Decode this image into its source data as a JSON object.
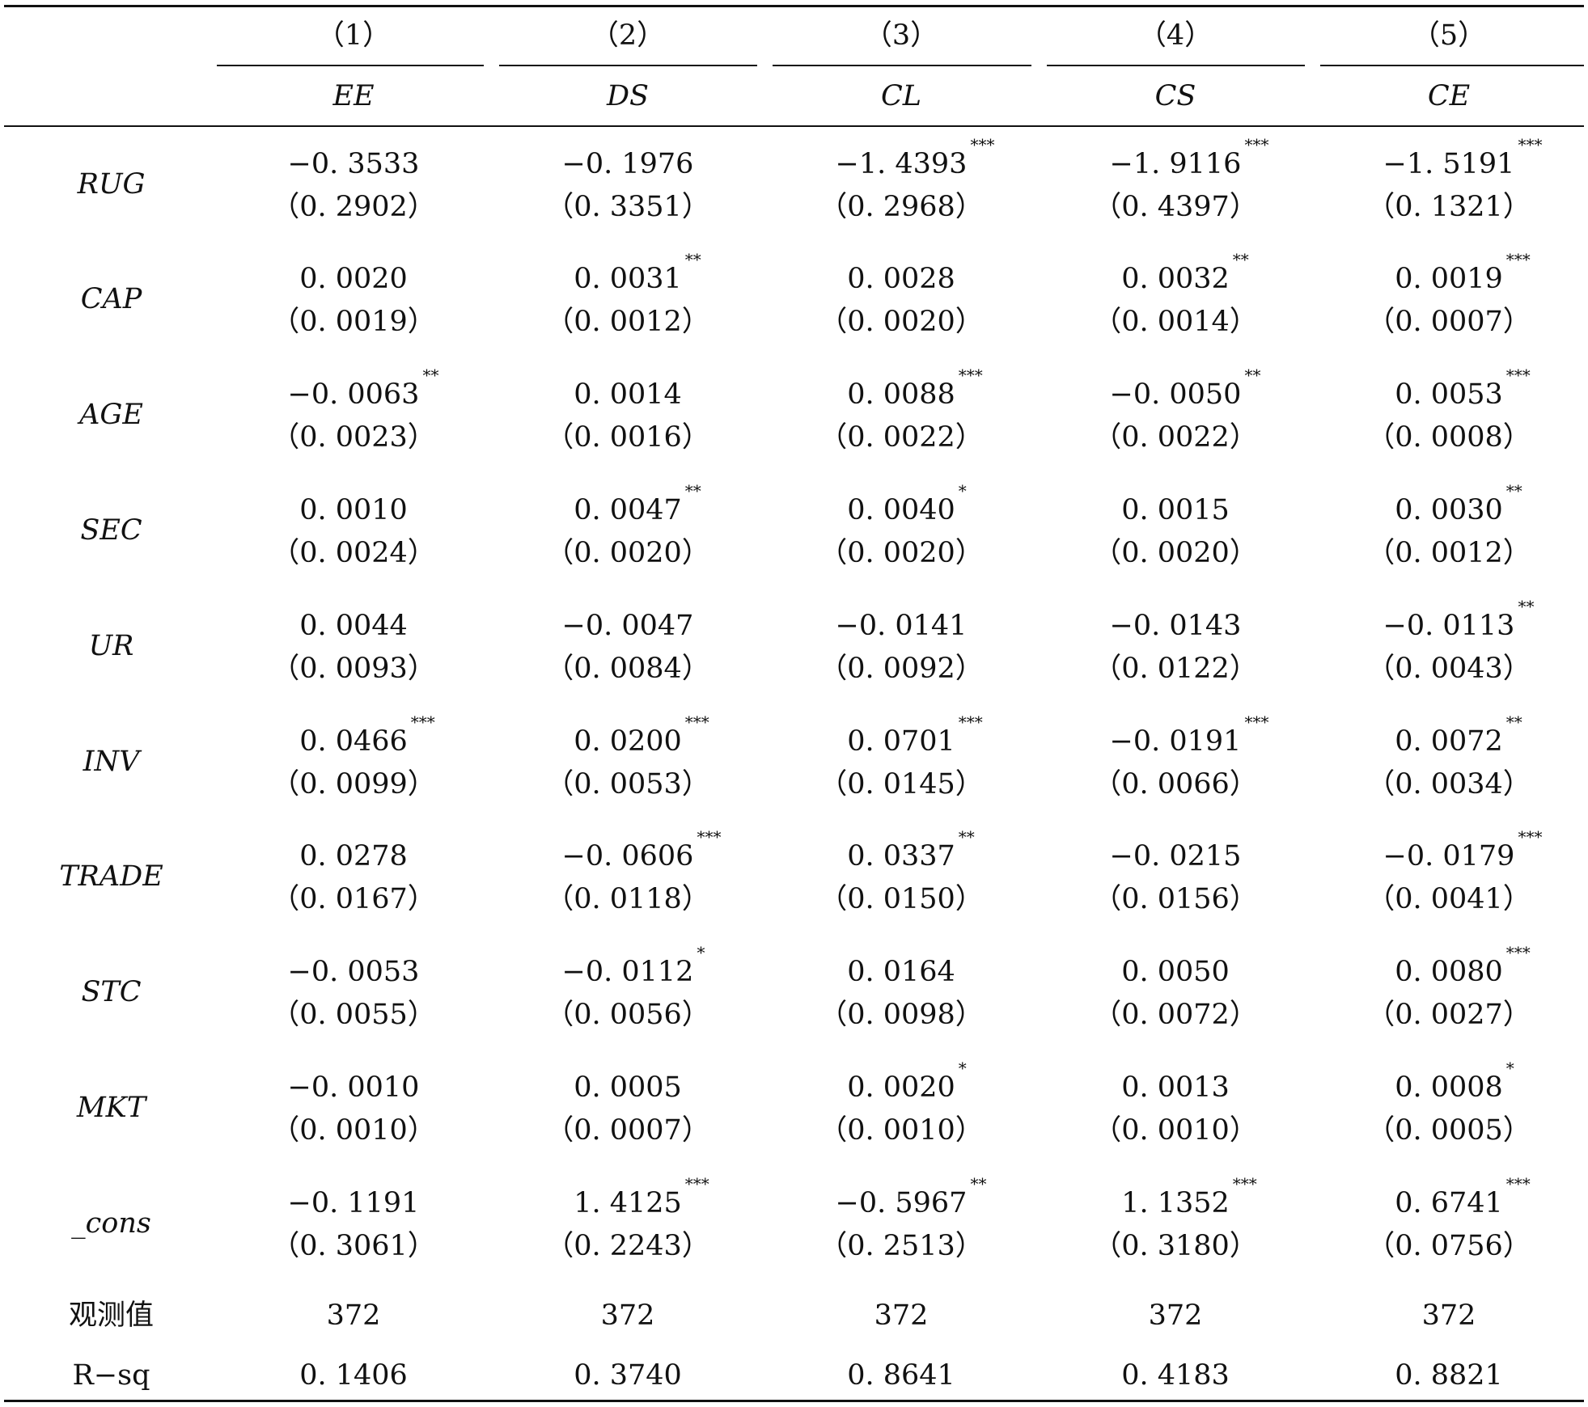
{
  "columns": [
    {
      "num": "（1）",
      "name": "EE"
    },
    {
      "num": "（2）",
      "name": "DS"
    },
    {
      "num": "（3）",
      "name": "CL"
    },
    {
      "num": "（4）",
      "name": "CS"
    },
    {
      "num": "（5）",
      "name": "CE"
    }
  ],
  "rows": [
    {
      "label": "RUG",
      "coefs": [
        {
          "v": "−0. 3533",
          "s": ""
        },
        {
          "v": "−0. 1976",
          "s": ""
        },
        {
          "v": "−1. 4393",
          "s": "***"
        },
        {
          "v": "−1. 9116",
          "s": "***"
        },
        {
          "v": "−1. 5191",
          "s": "***"
        }
      ],
      "ses": [
        "（0. 2902）",
        "（0. 3351）",
        "（0. 2968）",
        "（0. 4397）",
        "（0. 1321）"
      ]
    },
    {
      "label": "CAP",
      "coefs": [
        {
          "v": "0. 0020",
          "s": ""
        },
        {
          "v": "0. 0031",
          "s": "**"
        },
        {
          "v": "0. 0028",
          "s": ""
        },
        {
          "v": "0. 0032",
          "s": "**"
        },
        {
          "v": "0. 0019",
          "s": "***"
        }
      ],
      "ses": [
        "（0. 0019）",
        "（0. 0012）",
        "（0. 0020）",
        "（0. 0014）",
        "（0. 0007）"
      ]
    },
    {
      "label": "AGE",
      "coefs": [
        {
          "v": "−0. 0063",
          "s": "**"
        },
        {
          "v": "0. 0014",
          "s": ""
        },
        {
          "v": "0. 0088",
          "s": "***"
        },
        {
          "v": "−0. 0050",
          "s": "**"
        },
        {
          "v": "0. 0053",
          "s": "***"
        }
      ],
      "ses": [
        "（0. 0023）",
        "（0. 0016）",
        "（0. 0022）",
        "（0. 0022）",
        "（0. 0008）"
      ]
    },
    {
      "label": "SEC",
      "coefs": [
        {
          "v": "0. 0010",
          "s": ""
        },
        {
          "v": "0. 0047",
          "s": "**"
        },
        {
          "v": "0. 0040",
          "s": "*"
        },
        {
          "v": "0. 0015",
          "s": ""
        },
        {
          "v": "0. 0030",
          "s": "**"
        }
      ],
      "ses": [
        "（0. 0024）",
        "（0. 0020）",
        "（0. 0020）",
        "（0. 0020）",
        "（0. 0012）"
      ]
    },
    {
      "label": "UR",
      "coefs": [
        {
          "v": "0. 0044",
          "s": ""
        },
        {
          "v": "−0. 0047",
          "s": ""
        },
        {
          "v": "−0. 0141",
          "s": ""
        },
        {
          "v": "−0. 0143",
          "s": ""
        },
        {
          "v": "−0. 0113",
          "s": "**"
        }
      ],
      "ses": [
        "（0. 0093）",
        "（0. 0084）",
        "（0. 0092）",
        "（0. 0122）",
        "（0. 0043）"
      ]
    },
    {
      "label": "INV",
      "coefs": [
        {
          "v": "0. 0466",
          "s": "***"
        },
        {
          "v": "0. 0200",
          "s": "***"
        },
        {
          "v": "0. 0701",
          "s": "***"
        },
        {
          "v": "−0. 0191",
          "s": "***"
        },
        {
          "v": "0. 0072",
          "s": "**"
        }
      ],
      "ses": [
        "（0. 0099）",
        "（0. 0053）",
        "（0. 0145）",
        "（0. 0066）",
        "（0. 0034）"
      ]
    },
    {
      "label": "TRADE",
      "coefs": [
        {
          "v": "0. 0278",
          "s": ""
        },
        {
          "v": "−0. 0606",
          "s": "***"
        },
        {
          "v": "0. 0337",
          "s": "**"
        },
        {
          "v": "−0. 0215",
          "s": ""
        },
        {
          "v": "−0. 0179",
          "s": "***"
        }
      ],
      "ses": [
        "（0. 0167）",
        "（0. 0118）",
        "（0. 0150）",
        "（0. 0156）",
        "（0. 0041）"
      ]
    },
    {
      "label": "STC",
      "coefs": [
        {
          "v": "−0. 0053",
          "s": ""
        },
        {
          "v": "−0. 0112",
          "s": "*"
        },
        {
          "v": "0. 0164",
          "s": ""
        },
        {
          "v": "0. 0050",
          "s": ""
        },
        {
          "v": "0. 0080",
          "s": "***"
        }
      ],
      "ses": [
        "（0. 0055）",
        "（0. 0056）",
        "（0. 0098）",
        "（0. 0072）",
        "（0. 0027）"
      ]
    },
    {
      "label": "MKT",
      "coefs": [
        {
          "v": "−0. 0010",
          "s": ""
        },
        {
          "v": "0. 0005",
          "s": ""
        },
        {
          "v": "0. 0020",
          "s": "*"
        },
        {
          "v": "0. 0013",
          "s": ""
        },
        {
          "v": "0. 0008",
          "s": "*"
        }
      ],
      "ses": [
        "（0. 0010）",
        "（0. 0007）",
        "（0. 0010）",
        "（0. 0010）",
        "（0. 0005）"
      ]
    },
    {
      "label": "_cons",
      "coefs": [
        {
          "v": "−0. 1191",
          "s": ""
        },
        {
          "v": "1. 4125",
          "s": "***"
        },
        {
          "v": "−0. 5967",
          "s": "**"
        },
        {
          "v": "1. 1352",
          "s": "***"
        },
        {
          "v": "0. 6741",
          "s": "***"
        }
      ],
      "ses": [
        "（0. 3061）",
        "（0. 2243）",
        "（0. 2513）",
        "（0. 3180）",
        "（0. 0756）"
      ]
    }
  ],
  "obs": {
    "label": "观测值",
    "values": [
      "372",
      "372",
      "372",
      "372",
      "372"
    ]
  },
  "rsq": {
    "label": "R−sq",
    "values": [
      "0. 1406",
      "0. 3740",
      "0. 8641",
      "0. 4183",
      "0. 8821"
    ]
  }
}
